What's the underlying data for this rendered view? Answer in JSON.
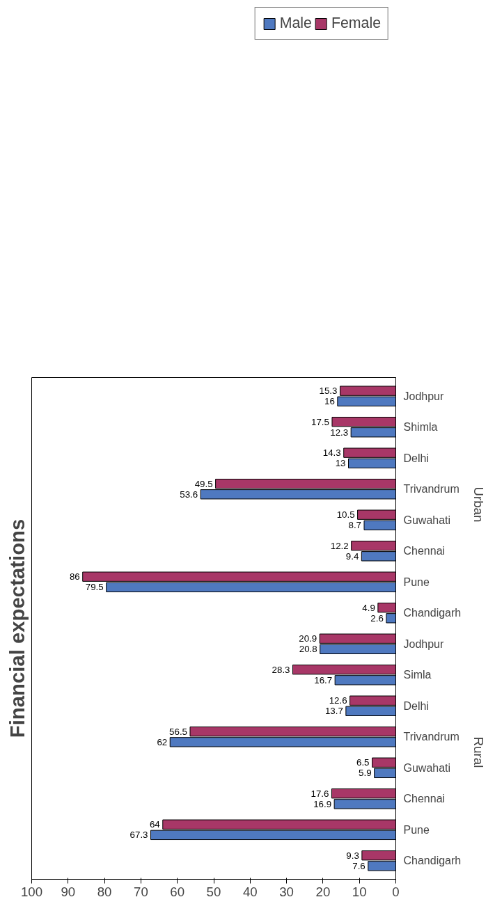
{
  "chart_data": {
    "type": "bar",
    "orientation": "horizontal",
    "title": "Financial expectations",
    "categories": [
      "Jodhpur",
      "Shimla",
      "Delhi",
      "Trivandrum",
      "Guwahati",
      "Chennai",
      "Pune",
      "Chandigarh",
      "Jodhpur",
      "Simla",
      "Delhi",
      "Trivandrum",
      "Guwahati",
      "Chennai",
      "Pune",
      "Chandigarh"
    ],
    "series": [
      {
        "name": "Male",
        "color": "#4f79c0",
        "values": [
          16,
          12.3,
          13,
          53.6,
          8.7,
          9.4,
          79.5,
          2.6,
          20.8,
          16.7,
          13.7,
          62,
          5.9,
          16.9,
          67.3,
          7.6
        ]
      },
      {
        "name": "Female",
        "color": "#a83767",
        "values": [
          15.3,
          17.5,
          14.3,
          49.5,
          10.5,
          12.2,
          86,
          4.9,
          20.9,
          28.3,
          12.6,
          56.5,
          6.5,
          17.6,
          64,
          9.3
        ]
      }
    ],
    "xlim": [
      100,
      0
    ],
    "xticks": [
      0,
      10,
      20,
      30,
      40,
      50,
      60,
      70,
      80,
      90,
      100
    ],
    "annotations": [
      "Urban",
      "Rural"
    ],
    "data_labels": true,
    "legend": "top",
    "grid": false
  }
}
